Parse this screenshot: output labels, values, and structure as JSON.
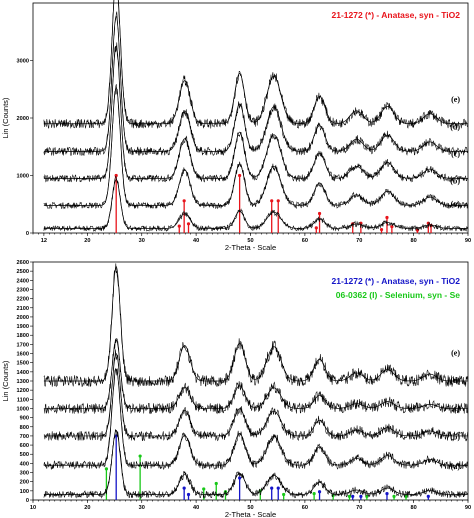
{
  "chart_data": [
    {
      "type": "line",
      "xlabel": "2-Theta - Scale",
      "ylabel": "Lin (Counts)",
      "xlim": [
        10,
        90
      ],
      "ylim": [
        0,
        4000
      ],
      "x_ticks": [
        12,
        20,
        30,
        40,
        50,
        60,
        70,
        80,
        90
      ],
      "y_ticks": [
        0,
        1000,
        2000,
        3000
      ],
      "series": [
        {
          "name": "(a)",
          "baseline": 80,
          "peak_height": 850
        },
        {
          "name": "(b)",
          "baseline": 480,
          "peak_height": 2050
        },
        {
          "name": "(c)",
          "baseline": 950,
          "peak_height": 2300
        },
        {
          "name": "(d)",
          "baseline": 1420,
          "peak_height": 2350
        },
        {
          "name": "(e)",
          "baseline": 1900,
          "peak_height": 2500
        }
      ],
      "peaks": [
        {
          "x": 25.3,
          "rel": 1.0,
          "w": 0.75
        },
        {
          "x": 37.9,
          "rel": 0.3,
          "w": 1.0
        },
        {
          "x": 48.0,
          "rel": 0.35,
          "w": 0.9
        },
        {
          "x": 54.3,
          "rel": 0.33,
          "w": 1.3
        },
        {
          "x": 62.7,
          "rel": 0.19,
          "w": 1.0
        },
        {
          "x": 69.5,
          "rel": 0.09,
          "w": 1.2
        },
        {
          "x": 75.2,
          "rel": 0.12,
          "w": 1.2
        },
        {
          "x": 83.0,
          "rel": 0.07,
          "w": 1.2
        }
      ],
      "reference_patterns": [
        {
          "label": "21-1272 (*) - Anatase, syn - TiO2",
          "color": "#e8141b",
          "lines": [
            {
              "x": 25.3,
              "h": 1000
            },
            {
              "x": 36.9,
              "h": 120
            },
            {
              "x": 37.8,
              "h": 560
            },
            {
              "x": 38.6,
              "h": 160
            },
            {
              "x": 48.0,
              "h": 1000
            },
            {
              "x": 53.9,
              "h": 560
            },
            {
              "x": 55.1,
              "h": 560
            },
            {
              "x": 62.1,
              "h": 90
            },
            {
              "x": 62.7,
              "h": 340
            },
            {
              "x": 68.8,
              "h": 160
            },
            {
              "x": 70.3,
              "h": 170
            },
            {
              "x": 74.1,
              "h": 60
            },
            {
              "x": 75.1,
              "h": 270
            },
            {
              "x": 76.0,
              "h": 110
            },
            {
              "x": 80.7,
              "h": 50
            },
            {
              "x": 82.7,
              "h": 170
            },
            {
              "x": 83.2,
              "h": 130
            }
          ]
        }
      ]
    },
    {
      "type": "line",
      "xlabel": "2-Theta - Scale",
      "ylabel": "Lin (Counts)",
      "xlim": [
        10,
        90
      ],
      "ylim": [
        0,
        2600
      ],
      "x_ticks": [
        10,
        20,
        30,
        40,
        50,
        60,
        70,
        80,
        90
      ],
      "y_ticks": [
        0,
        100,
        200,
        300,
        400,
        500,
        600,
        700,
        800,
        900,
        1000,
        1100,
        1200,
        1300,
        1400,
        1500,
        1600,
        1700,
        1800,
        1900,
        2000,
        2100,
        2200,
        2300,
        2400,
        2500,
        2600
      ],
      "series": [
        {
          "name": "(a)",
          "baseline": 60,
          "peak_height": 700
        },
        {
          "name": "(b)",
          "baseline": 380,
          "peak_height": 1050
        },
        {
          "name": "(c)",
          "baseline": 700,
          "peak_height": 900
        },
        {
          "name": "(d)",
          "baseline": 1000,
          "peak_height": 750
        },
        {
          "name": "(e)",
          "baseline": 1300,
          "peak_height": 1250
        }
      ],
      "peaks": [
        {
          "x": 25.3,
          "rel": 1.0,
          "w": 0.75
        },
        {
          "x": 37.9,
          "rel": 0.31,
          "w": 1.0
        },
        {
          "x": 48.0,
          "rel": 0.33,
          "w": 1.0
        },
        {
          "x": 54.3,
          "rel": 0.3,
          "w": 1.3
        },
        {
          "x": 62.7,
          "rel": 0.19,
          "w": 1.0
        },
        {
          "x": 69.5,
          "rel": 0.07,
          "w": 1.2
        },
        {
          "x": 75.2,
          "rel": 0.1,
          "w": 1.2
        },
        {
          "x": 83.0,
          "rel": 0.06,
          "w": 1.2
        }
      ],
      "reference_patterns": [
        {
          "label": "21-1272 (*) - Anatase, syn - TiO2",
          "color": "#1414c8",
          "lines": [
            {
              "x": 25.3,
              "h": 700
            },
            {
              "x": 37.8,
              "h": 130
            },
            {
              "x": 38.6,
              "h": 60
            },
            {
              "x": 48.0,
              "h": 240
            },
            {
              "x": 53.9,
              "h": 130
            },
            {
              "x": 55.1,
              "h": 130
            },
            {
              "x": 62.7,
              "h": 90
            },
            {
              "x": 68.8,
              "h": 40
            },
            {
              "x": 70.3,
              "h": 40
            },
            {
              "x": 75.1,
              "h": 70
            },
            {
              "x": 82.7,
              "h": 40
            }
          ]
        },
        {
          "label": "06-0362 (I) - Selenium, syn - Se",
          "color": "#18c818",
          "lines": [
            {
              "x": 23.5,
              "h": 340
            },
            {
              "x": 29.7,
              "h": 480
            },
            {
              "x": 41.4,
              "h": 120
            },
            {
              "x": 43.7,
              "h": 180
            },
            {
              "x": 45.4,
              "h": 90
            },
            {
              "x": 51.8,
              "h": 100
            },
            {
              "x": 56.1,
              "h": 60
            },
            {
              "x": 61.7,
              "h": 70
            },
            {
              "x": 65.2,
              "h": 50
            },
            {
              "x": 68.2,
              "h": 40
            },
            {
              "x": 71.4,
              "h": 40
            },
            {
              "x": 76.4,
              "h": 40
            },
            {
              "x": 78.6,
              "h": 40
            }
          ]
        }
      ]
    }
  ]
}
